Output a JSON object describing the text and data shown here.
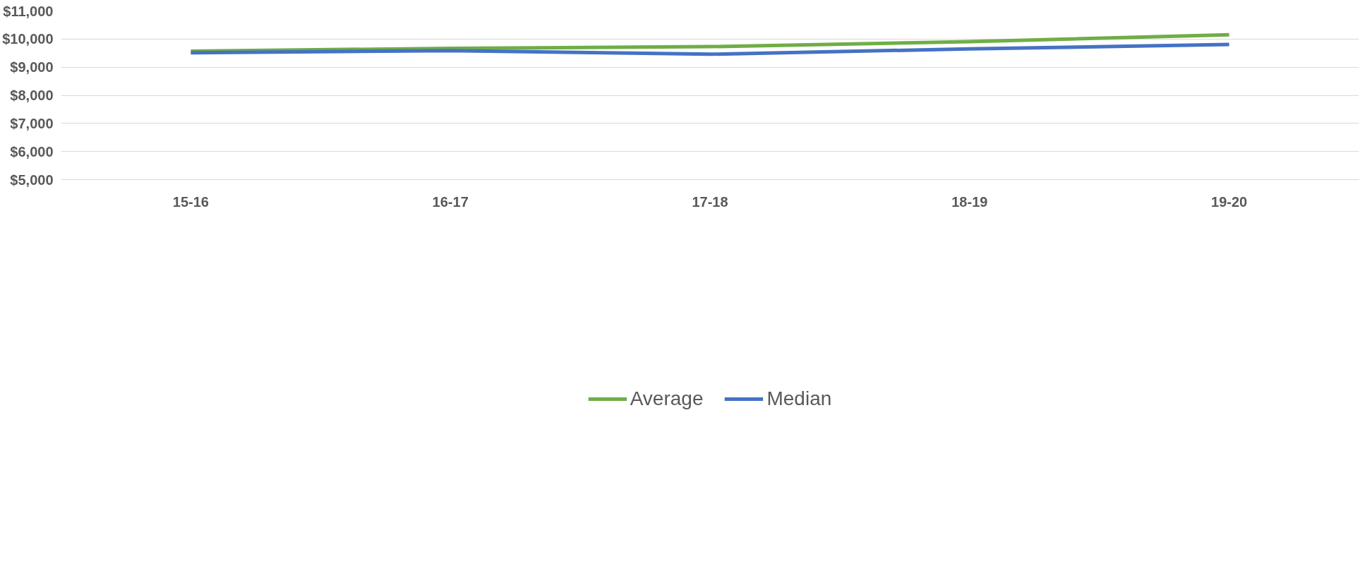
{
  "chart_data": {
    "type": "line",
    "categories": [
      "15-16",
      "16-17",
      "17-18",
      "18-19",
      "19-20"
    ],
    "series": [
      {
        "name": "Average",
        "color": "#70ad47",
        "values": [
          9570,
          9670,
          9730,
          9910,
          10150
        ]
      },
      {
        "name": "Median",
        "color": "#4472c4",
        "values": [
          9510,
          9590,
          9460,
          9650,
          9810
        ]
      }
    ],
    "ylim": [
      5000,
      11000
    ],
    "yticks": [
      {
        "value": 5000,
        "label": "$5,000"
      },
      {
        "value": 6000,
        "label": "$6,000"
      },
      {
        "value": 7000,
        "label": "$7,000"
      },
      {
        "value": 8000,
        "label": "$8,000"
      },
      {
        "value": 9000,
        "label": "$9,000"
      },
      {
        "value": 10000,
        "label": "$10,000"
      },
      {
        "value": 11000,
        "label": "$11,000"
      }
    ],
    "grid": "y",
    "legend": "bottom",
    "marker": "none",
    "line_style": "solid"
  }
}
